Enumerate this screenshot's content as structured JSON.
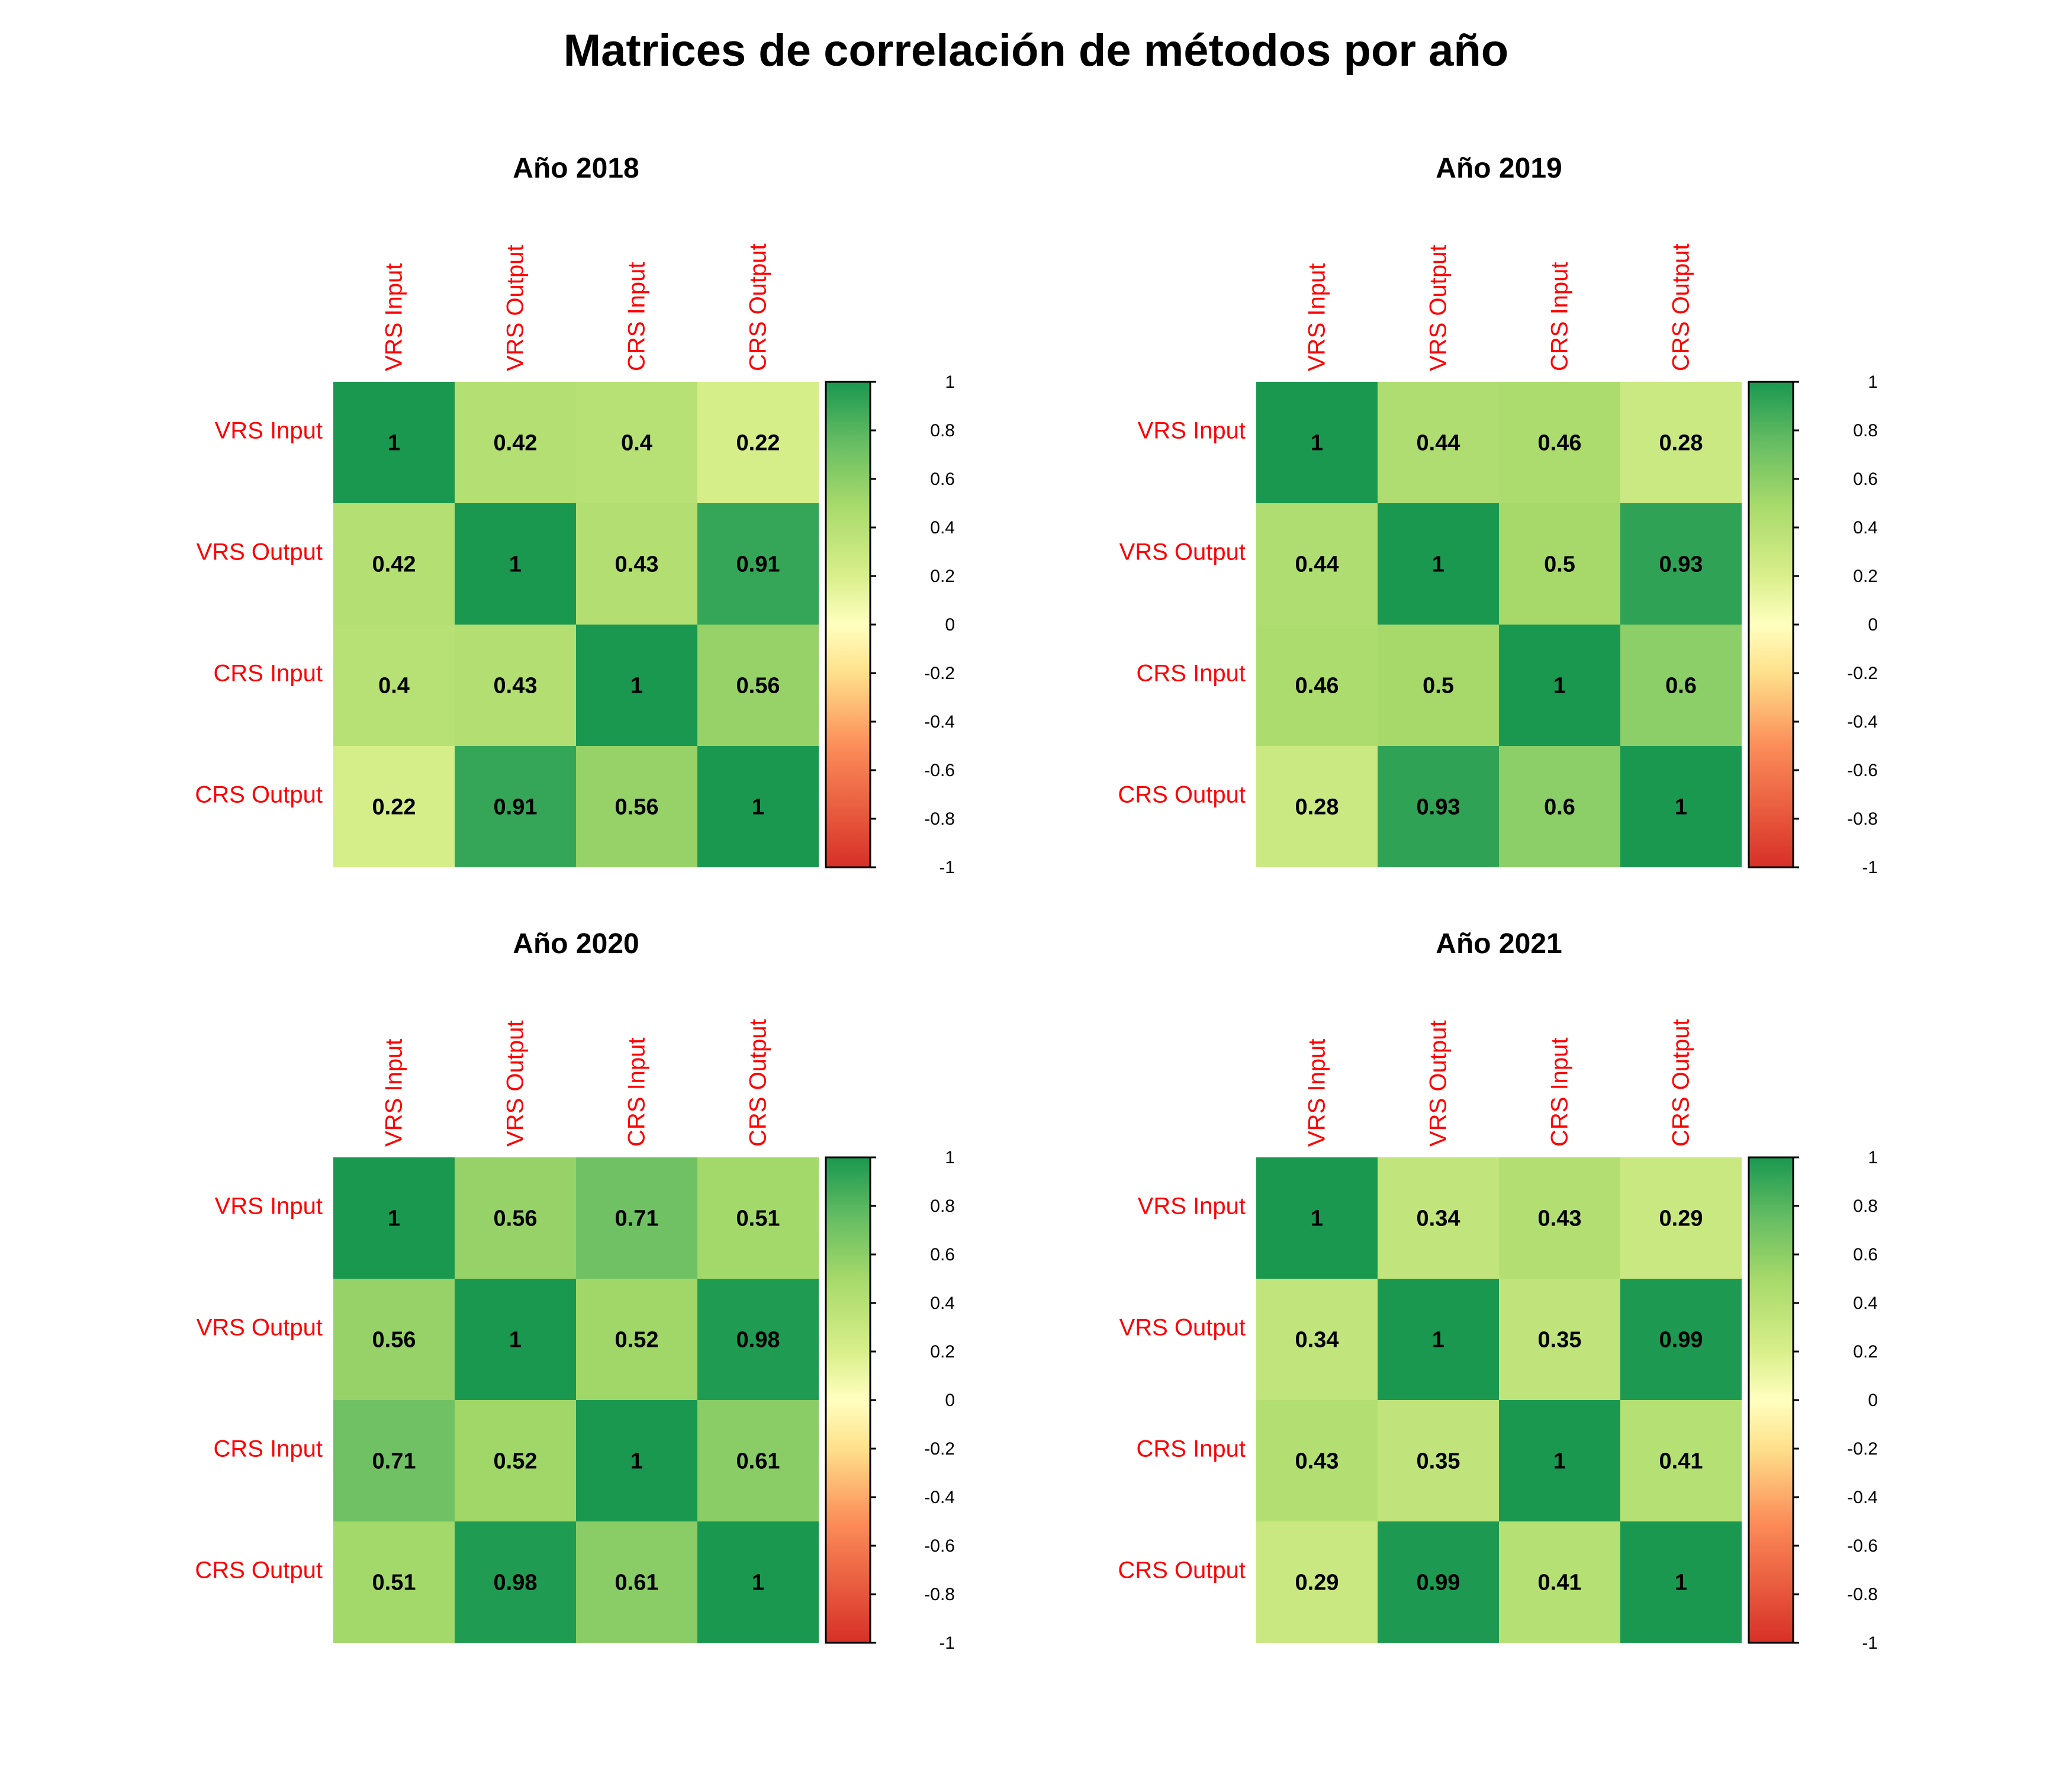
{
  "title": "Matrices de correlación de métodos por año",
  "chart_data": [
    {
      "type": "heatmap",
      "title": "Año 2018",
      "rows": [
        "VRS Input",
        "VRS Output",
        "CRS Input",
        "CRS Output"
      ],
      "columns": [
        "VRS Input",
        "VRS Output",
        "CRS Input",
        "CRS Output"
      ],
      "values": [
        [
          1,
          0.42,
          0.4,
          0.22
        ],
        [
          0.42,
          1,
          0.43,
          0.91
        ],
        [
          0.4,
          0.43,
          1,
          0.56
        ],
        [
          0.22,
          0.91,
          0.56,
          1
        ]
      ],
      "value_labels": [
        [
          "1",
          "0.42",
          "0.4",
          "0.22"
        ],
        [
          "0.42",
          "1",
          "0.43",
          "0.91"
        ],
        [
          "0.4",
          "0.43",
          "1",
          "0.56"
        ],
        [
          "0.22",
          "0.91",
          "0.56",
          "1"
        ]
      ],
      "color_range": [
        -1,
        1
      ],
      "legend_ticks": [
        "1",
        "0.8",
        "0.6",
        "0.4",
        "0.2",
        "0",
        "-0.2",
        "-0.4",
        "-0.6",
        "-0.8",
        "-1"
      ],
      "legend_placement": "right"
    },
    {
      "type": "heatmap",
      "title": "Año 2019",
      "rows": [
        "VRS Input",
        "VRS Output",
        "CRS Input",
        "CRS Output"
      ],
      "columns": [
        "VRS Input",
        "VRS Output",
        "CRS Input",
        "CRS Output"
      ],
      "values": [
        [
          1,
          0.44,
          0.46,
          0.28
        ],
        [
          0.44,
          1,
          0.5,
          0.93
        ],
        [
          0.46,
          0.5,
          1,
          0.6
        ],
        [
          0.28,
          0.93,
          0.6,
          1
        ]
      ],
      "value_labels": [
        [
          "1",
          "0.44",
          "0.46",
          "0.28"
        ],
        [
          "0.44",
          "1",
          "0.5",
          "0.93"
        ],
        [
          "0.46",
          "0.5",
          "1",
          "0.6"
        ],
        [
          "0.28",
          "0.93",
          "0.6",
          "1"
        ]
      ],
      "color_range": [
        -1,
        1
      ],
      "legend_ticks": [
        "1",
        "0.8",
        "0.6",
        "0.4",
        "0.2",
        "0",
        "-0.2",
        "-0.4",
        "-0.6",
        "-0.8",
        "-1"
      ],
      "legend_placement": "right"
    },
    {
      "type": "heatmap",
      "title": "Año 2020",
      "rows": [
        "VRS Input",
        "VRS Output",
        "CRS Input",
        "CRS Output"
      ],
      "columns": [
        "VRS Input",
        "VRS Output",
        "CRS Input",
        "CRS Output"
      ],
      "values": [
        [
          1,
          0.56,
          0.71,
          0.51
        ],
        [
          0.56,
          1,
          0.52,
          0.98
        ],
        [
          0.71,
          0.52,
          1,
          0.61
        ],
        [
          0.51,
          0.98,
          0.61,
          1
        ]
      ],
      "value_labels": [
        [
          "1",
          "0.56",
          "0.71",
          "0.51"
        ],
        [
          "0.56",
          "1",
          "0.52",
          "0.98"
        ],
        [
          "0.71",
          "0.52",
          "1",
          "0.61"
        ],
        [
          "0.51",
          "0.98",
          "0.61",
          "1"
        ]
      ],
      "color_range": [
        -1,
        1
      ],
      "legend_ticks": [
        "1",
        "0.8",
        "0.6",
        "0.4",
        "0.2",
        "0",
        "-0.2",
        "-0.4",
        "-0.6",
        "-0.8",
        "-1"
      ],
      "legend_placement": "right"
    },
    {
      "type": "heatmap",
      "title": "Año 2021",
      "rows": [
        "VRS Input",
        "VRS Output",
        "CRS Input",
        "CRS Output"
      ],
      "columns": [
        "VRS Input",
        "VRS Output",
        "CRS Input",
        "CRS Output"
      ],
      "values": [
        [
          1,
          0.34,
          0.43,
          0.29
        ],
        [
          0.34,
          1,
          0.35,
          0.99
        ],
        [
          0.43,
          0.35,
          1,
          0.41
        ],
        [
          0.29,
          0.99,
          0.41,
          1
        ]
      ],
      "value_labels": [
        [
          "1",
          "0.34",
          "0.43",
          "0.29"
        ],
        [
          "0.34",
          "1",
          "0.35",
          "0.99"
        ],
        [
          "0.43",
          "0.35",
          "1",
          "0.41"
        ],
        [
          "0.29",
          "0.99",
          "0.41",
          "1"
        ]
      ],
      "color_range": [
        -1,
        1
      ],
      "legend_ticks": [
        "1",
        "0.8",
        "0.6",
        "0.4",
        "0.2",
        "0",
        "-0.2",
        "-0.4",
        "-0.6",
        "-0.8",
        "-1"
      ],
      "legend_placement": "right"
    }
  ],
  "colors": {
    "label_color": "#ff0000",
    "scale_low": "#d73027",
    "scale_mid": "#ffffbf",
    "scale_high": "#1a9850"
  }
}
